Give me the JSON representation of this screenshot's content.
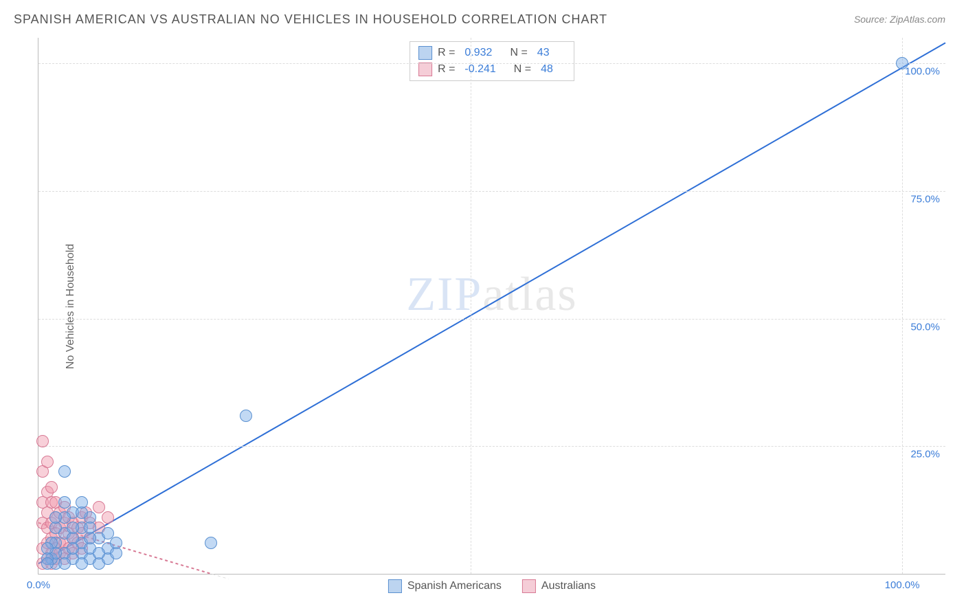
{
  "title": "SPANISH AMERICAN VS AUSTRALIAN NO VEHICLES IN HOUSEHOLD CORRELATION CHART",
  "source": "Source: ZipAtlas.com",
  "ylabel": "No Vehicles in Household",
  "watermark_zip": "ZIP",
  "watermark_atlas": "atlas",
  "chart": {
    "type": "scatter",
    "xlim": [
      0,
      105
    ],
    "ylim": [
      0,
      105
    ],
    "y_gridlines": [
      25,
      50,
      75,
      100
    ],
    "x_gridlines": [
      50,
      100
    ],
    "y_tick_labels": {
      "25": "25.0%",
      "50": "50.0%",
      "75": "75.0%",
      "100": "100.0%"
    },
    "x_tick_labels": {
      "0": "0.0%",
      "100": "100.0%"
    },
    "background_color": "#ffffff",
    "grid_color": "#dddddd",
    "axis_color": "#bbbbbb",
    "tick_font_color": "#3b7dd8",
    "tick_font_size": 15,
    "title_font_size": 18,
    "title_color": "#555555",
    "label_font_size": 16,
    "label_color": "#666666"
  },
  "series": [
    {
      "name": "Spanish Americans",
      "fill_color": "rgba(120,170,230,0.45)",
      "stroke_color": "#5a90d0",
      "marker_radius": 8,
      "trend": {
        "x1": 0,
        "y1": 2,
        "x2": 105,
        "y2": 104,
        "stroke": "#2e6fd6",
        "width": 2,
        "dash": "none"
      },
      "stats": {
        "R": "0.932",
        "N": "43"
      },
      "points": [
        [
          100,
          100
        ],
        [
          24,
          31
        ],
        [
          20,
          6
        ],
        [
          8,
          5
        ],
        [
          2,
          2
        ],
        [
          3,
          8
        ],
        [
          4,
          12
        ],
        [
          5,
          4
        ],
        [
          5,
          6
        ],
        [
          5,
          9
        ],
        [
          6,
          3
        ],
        [
          6,
          5
        ],
        [
          6,
          11
        ],
        [
          7,
          2
        ],
        [
          7,
          7
        ],
        [
          8,
          3
        ],
        [
          8,
          8
        ],
        [
          9,
          4
        ],
        [
          9,
          6
        ],
        [
          3,
          4
        ],
        [
          2,
          6
        ],
        [
          4,
          3
        ],
        [
          1.5,
          3
        ],
        [
          1.5,
          6
        ],
        [
          2,
          9
        ],
        [
          3,
          11
        ],
        [
          4,
          7
        ],
        [
          5,
          2
        ],
        [
          6,
          7
        ],
        [
          3,
          2
        ],
        [
          2,
          4
        ],
        [
          1,
          5
        ],
        [
          1,
          3
        ],
        [
          1,
          2
        ],
        [
          3,
          20
        ],
        [
          4,
          5
        ],
        [
          5,
          12
        ],
        [
          7,
          4
        ],
        [
          2,
          11
        ],
        [
          3,
          14
        ],
        [
          4,
          9
        ],
        [
          5,
          14
        ],
        [
          6,
          9
        ]
      ]
    },
    {
      "name": "Australians",
      "fill_color": "rgba(240,150,170,0.45)",
      "stroke_color": "#d87a95",
      "marker_radius": 8,
      "trend": {
        "x1": 0,
        "y1": 10,
        "x2": 20,
        "y2": 0,
        "stroke": "#d87a95",
        "width": 2,
        "dash": "4 4",
        "extend_x2": 22,
        "extend_y2": -1
      },
      "stats": {
        "R": "-0.241",
        "N": "48"
      },
      "points": [
        [
          0.5,
          2
        ],
        [
          0.5,
          5
        ],
        [
          0.5,
          10
        ],
        [
          0.5,
          14
        ],
        [
          0.5,
          20
        ],
        [
          0.5,
          26
        ],
        [
          1,
          3
        ],
        [
          1,
          6
        ],
        [
          1,
          9
        ],
        [
          1,
          12
        ],
        [
          1,
          16
        ],
        [
          1,
          22
        ],
        [
          1.5,
          2
        ],
        [
          1.5,
          4
        ],
        [
          1.5,
          7
        ],
        [
          1.5,
          10
        ],
        [
          1.5,
          14
        ],
        [
          1.5,
          17
        ],
        [
          2,
          3
        ],
        [
          2,
          5
        ],
        [
          2,
          8
        ],
        [
          2,
          11
        ],
        [
          2,
          14
        ],
        [
          2.5,
          4
        ],
        [
          2.5,
          6
        ],
        [
          2.5,
          9
        ],
        [
          2.5,
          12
        ],
        [
          3,
          3
        ],
        [
          3,
          6
        ],
        [
          3,
          10
        ],
        [
          3,
          13
        ],
        [
          3.5,
          5
        ],
        [
          3.5,
          8
        ],
        [
          3.5,
          11
        ],
        [
          4,
          4
        ],
        [
          4,
          7
        ],
        [
          4,
          10
        ],
        [
          4.5,
          6
        ],
        [
          4.5,
          9
        ],
        [
          5,
          5
        ],
        [
          5,
          8
        ],
        [
          5,
          11
        ],
        [
          5.5,
          12
        ],
        [
          6,
          7
        ],
        [
          6,
          10
        ],
        [
          7,
          9
        ],
        [
          7,
          13
        ],
        [
          8,
          11
        ]
      ]
    }
  ],
  "legend": {
    "swatch_blue_fill": "#bcd4f0",
    "swatch_blue_border": "#5a90d0",
    "swatch_pink_fill": "#f5cdd7",
    "swatch_pink_border": "#d87a95",
    "r_label": "R =",
    "n_label": "N ="
  },
  "bottom_legend": [
    {
      "label": "Spanish Americans",
      "fill": "#bcd4f0",
      "border": "#5a90d0"
    },
    {
      "label": "Australians",
      "fill": "#f5cdd7",
      "border": "#d87a95"
    }
  ]
}
